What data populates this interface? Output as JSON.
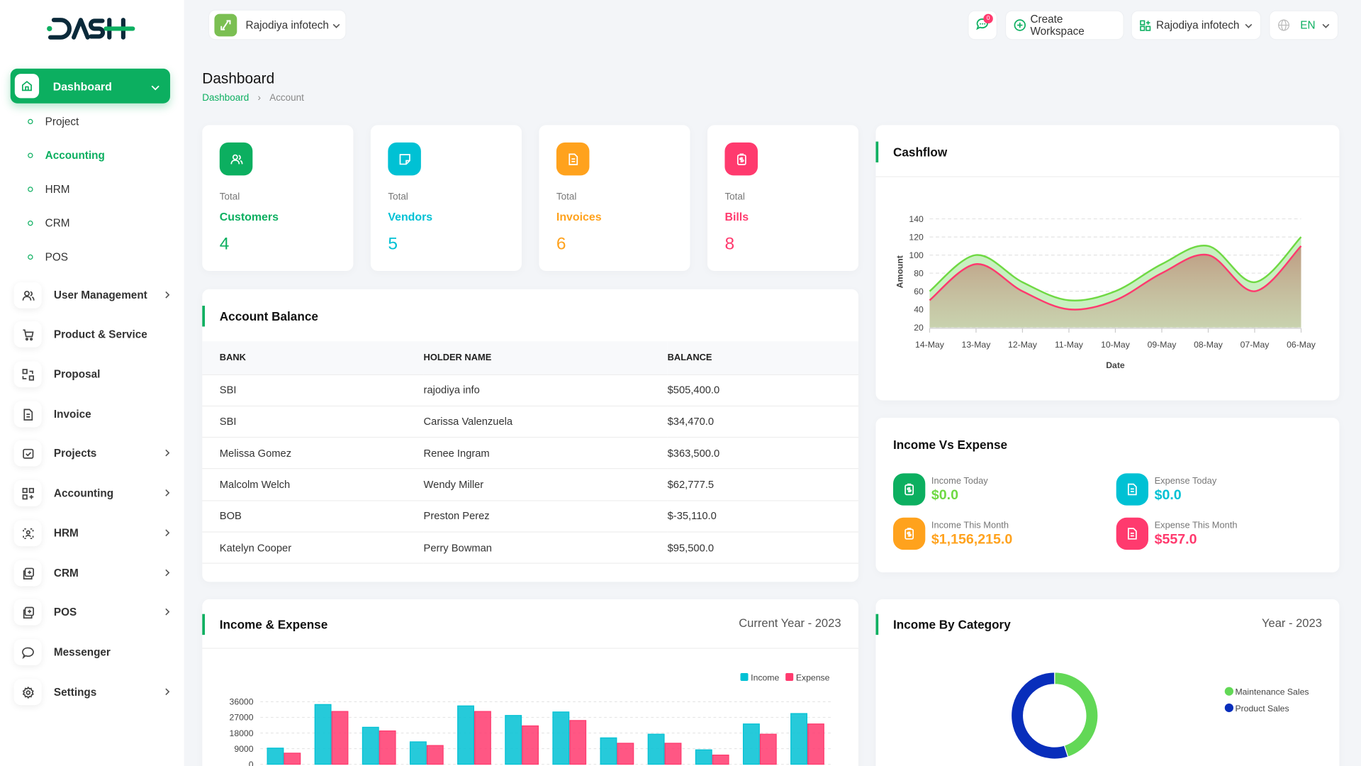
{
  "brand": {
    "logo_text": "DASH",
    "accent": "#0caf60"
  },
  "header": {
    "workspace": "Rajodiya infotech",
    "notifications_count": "0",
    "create_workspace": "Create Workspace",
    "company": "Rajodiya infotech",
    "language": "EN"
  },
  "sidebar": {
    "active": {
      "label": "Dashboard",
      "icon": "home-icon"
    },
    "sub_items": [
      {
        "label": "Project"
      },
      {
        "label": "Accounting",
        "active": true
      },
      {
        "label": "HRM"
      },
      {
        "label": "CRM"
      },
      {
        "label": "POS"
      }
    ],
    "items": [
      {
        "label": "User Management",
        "icon": "users-icon",
        "has_children": true
      },
      {
        "label": "Product & Service",
        "icon": "cart-icon",
        "has_children": false
      },
      {
        "label": "Proposal",
        "icon": "swap-icon",
        "has_children": false
      },
      {
        "label": "Invoice",
        "icon": "file-icon",
        "has_children": false
      },
      {
        "label": "Projects",
        "icon": "checkbox-icon",
        "has_children": true
      },
      {
        "label": "Accounting",
        "icon": "grid-plus-icon",
        "has_children": true
      },
      {
        "label": "HRM",
        "icon": "user-focus-icon",
        "has_children": true
      },
      {
        "label": "CRM",
        "icon": "layers-icon",
        "has_children": true
      },
      {
        "label": "POS",
        "icon": "layers-icon",
        "has_children": true
      },
      {
        "label": "Messenger",
        "icon": "chat-icon",
        "has_children": false
      },
      {
        "label": "Settings",
        "icon": "gear-icon",
        "has_children": true
      }
    ]
  },
  "page": {
    "title": "Dashboard",
    "breadcrumb": [
      "Dashboard",
      "Account"
    ]
  },
  "stats": [
    {
      "total": "Total",
      "label": "Customers",
      "value": "4",
      "color": "#0caf60",
      "icon": "users-icon"
    },
    {
      "total": "Total",
      "label": "Vendors",
      "value": "5",
      "color": "#00c1d4",
      "icon": "note-icon"
    },
    {
      "total": "Total",
      "label": "Invoices",
      "value": "6",
      "color": "#ffa21d",
      "icon": "file-icon"
    },
    {
      "total": "Total",
      "label": "Bills",
      "value": "8",
      "color": "#ff3a6e",
      "icon": "clipboard-dollar-icon"
    }
  ],
  "account_balance": {
    "title": "Account Balance",
    "columns": [
      "BANK",
      "HOLDER NAME",
      "BALANCE"
    ],
    "rows": [
      [
        "SBI",
        "rajodiya info",
        "$505,400.0"
      ],
      [
        "SBI",
        "Carissa Valenzuela",
        "$34,470.0"
      ],
      [
        "Melissa Gomez",
        "Renee Ingram",
        "$363,500.0"
      ],
      [
        "Malcolm Welch",
        "Wendy Miller",
        "$62,777.5"
      ],
      [
        "BOB",
        "Preston Perez",
        "$-35,110.0"
      ],
      [
        "Katelyn Cooper",
        "Perry Bowman",
        "$95,500.0"
      ]
    ]
  },
  "cashflow": {
    "title": "Cashflow"
  },
  "income_vs_expense": {
    "title": "Income Vs Expense",
    "items": [
      {
        "label": "Income Today",
        "value": "$0.0",
        "color": "#0caf60",
        "text_color": "#6fd943",
        "icon": "clipboard-dollar-icon"
      },
      {
        "label": "Expense Today",
        "value": "$0.0",
        "color": "#00c1d4",
        "text_color": "#00c1d4",
        "icon": "file-icon"
      },
      {
        "label": "Income This Month",
        "value": "$1,156,215.0",
        "color": "#ffa21d",
        "text_color": "#ffa21d",
        "icon": "clipboard-dollar-icon"
      },
      {
        "label": "Expense This Month",
        "value": "$557.0",
        "color": "#ff3a6e",
        "text_color": "#ff3a6e",
        "icon": "file-icon"
      }
    ]
  },
  "income_expense": {
    "title": "Income & Expense",
    "period": "Current Year - 2023"
  },
  "income_by_category": {
    "title": "Income By Category",
    "period": "Year - 2023"
  },
  "chart_data": [
    {
      "type": "area",
      "xlabel": "Date",
      "ylabel": "Amount",
      "categories": [
        "14-May",
        "13-May",
        "12-May",
        "11-May",
        "10-May",
        "09-May",
        "08-May",
        "07-May",
        "06-May"
      ],
      "yticks": [
        20,
        40,
        60,
        80,
        100,
        120,
        140
      ],
      "ylim": [
        20,
        140
      ],
      "grid": true,
      "series": [
        {
          "values": [
            60,
            100,
            70,
            50,
            60,
            90,
            110,
            70,
            120
          ],
          "color": "#6fd943"
        },
        {
          "values": [
            50,
            90,
            60,
            40,
            50,
            80,
            100,
            60,
            110
          ],
          "color": "#ff3a6e"
        }
      ]
    },
    {
      "type": "bar",
      "yticks": [
        0,
        9000,
        18000,
        27000,
        36000
      ],
      "ylim": [
        0,
        36000
      ],
      "grid": true,
      "legend": "top-right",
      "series": [
        {
          "name": "Income",
          "color": "#00c1d4",
          "values": [
            9300,
            34400,
            21300,
            12900,
            33600,
            28100,
            30100,
            15200,
            17300,
            8300,
            23200,
            29200
          ]
        },
        {
          "name": "Expense",
          "color": "#ff3a6e",
          "values": [
            6400,
            30400,
            19200,
            10800,
            30400,
            22100,
            25200,
            12100,
            12100,
            5300,
            17300,
            23200
          ]
        }
      ]
    },
    {
      "type": "pie",
      "donut": true,
      "legend": "right",
      "labels": [
        "Maintenance Sales",
        "Product Sales"
      ],
      "values": [
        45,
        55
      ],
      "colors": [
        "#62d856",
        "#082ebb"
      ]
    }
  ]
}
